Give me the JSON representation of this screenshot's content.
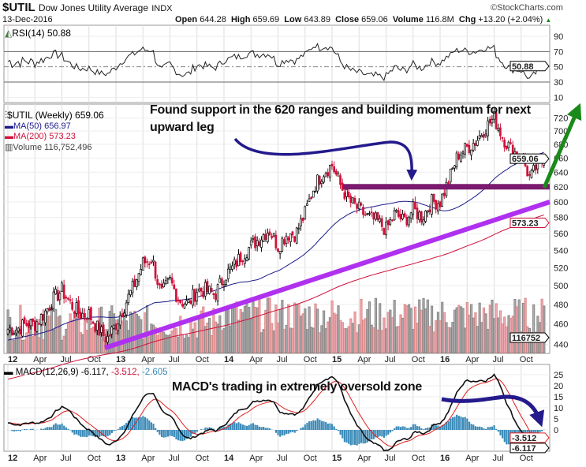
{
  "header": {
    "symbol": "$UTIL",
    "name": "Dow Jones Utility Average",
    "exchange": "INDX",
    "date": "13-Dec-2016",
    "open_label": "Open",
    "open": "644.28",
    "high_label": "High",
    "high": "659.69",
    "low_label": "Low",
    "low": "643.89",
    "close_label": "Close",
    "close": "659.06",
    "volume_label": "Volume",
    "volume": "116.8M",
    "chg_label": "Chg",
    "chg": "+13.20 (+2.04%)",
    "watermark": "©StockCharts.com"
  },
  "rsi": {
    "label": "RSI(14) 50.88",
    "value_tag": "50.88",
    "ticks": [
      "90",
      "70",
      "50",
      "30",
      "10"
    ]
  },
  "price": {
    "legend_main": "$UTIL (Weekly) 659.06",
    "legend_ma50": "MA(50) 656.97",
    "legend_ma200": "MA(200) 573.23",
    "legend_volume": "Volume 116,752,496",
    "tag_close": "659.06",
    "tag_ma200": "573.23",
    "tag_volume": "116752",
    "ticks": [
      "720",
      "700",
      "680",
      "660",
      "640",
      "620",
      "600",
      "580",
      "560",
      "540",
      "520",
      "500",
      "480",
      "460",
      "440"
    ]
  },
  "macd": {
    "label_prefix": "MACD(12,26,9) -6.117,",
    "label_signal": " -3.512,",
    "label_hist": " -2.605",
    "tag_signal": "-3.512",
    "tag_macd": "-6.117",
    "ticks": [
      "25",
      "20",
      "15",
      "10",
      "5",
      "0"
    ]
  },
  "xaxis": [
    "12",
    "Apr",
    "Jul",
    "Oct",
    "13",
    "Apr",
    "Jul",
    "Oct",
    "14",
    "Apr",
    "Jul",
    "Oct",
    "15",
    "Apr",
    "Jul",
    "Oct",
    "16",
    "Apr",
    "Jul",
    "Oct"
  ],
  "annotations": {
    "price_note": "Found support in the 620 ranges and building momentum for next upward leg",
    "macd_note": "MACD's trading in extremely oversold  zone"
  },
  "colors": {
    "up": "#000000",
    "down": "#d0103a",
    "ma50": "#1a1a8c",
    "ma200": "#d0103a",
    "support": "#7b1a6e",
    "trend": "#b030f0",
    "arrow_green": "#1a8a1a",
    "arrow_navy": "#241a8c",
    "hist": "#3a8ab8"
  },
  "chart_data": {
    "type": "candlestick",
    "title": "$UTIL Dow Jones Utility Average (Weekly)",
    "x_start": "2012-01",
    "x_end": "2016-12",
    "monthly_close_approx": [
      455,
      455,
      460,
      460,
      470,
      485,
      495,
      480,
      470,
      470,
      455,
      445,
      460,
      480,
      500,
      525,
      530,
      490,
      505,
      485,
      480,
      495,
      495,
      490,
      510,
      520,
      535,
      545,
      555,
      565,
      545,
      560,
      560,
      585,
      620,
      640,
      650,
      620,
      600,
      590,
      580,
      575,
      565,
      585,
      575,
      590,
      580,
      600,
      600,
      630,
      665,
      675,
      685,
      705,
      720,
      690,
      670,
      665,
      630,
      655
    ],
    "ylim": [
      430,
      730
    ],
    "yscale": "log",
    "support_level": 620,
    "rsi_ylim": [
      0,
      100
    ],
    "macd_ylim": [
      -8,
      27
    ]
  }
}
